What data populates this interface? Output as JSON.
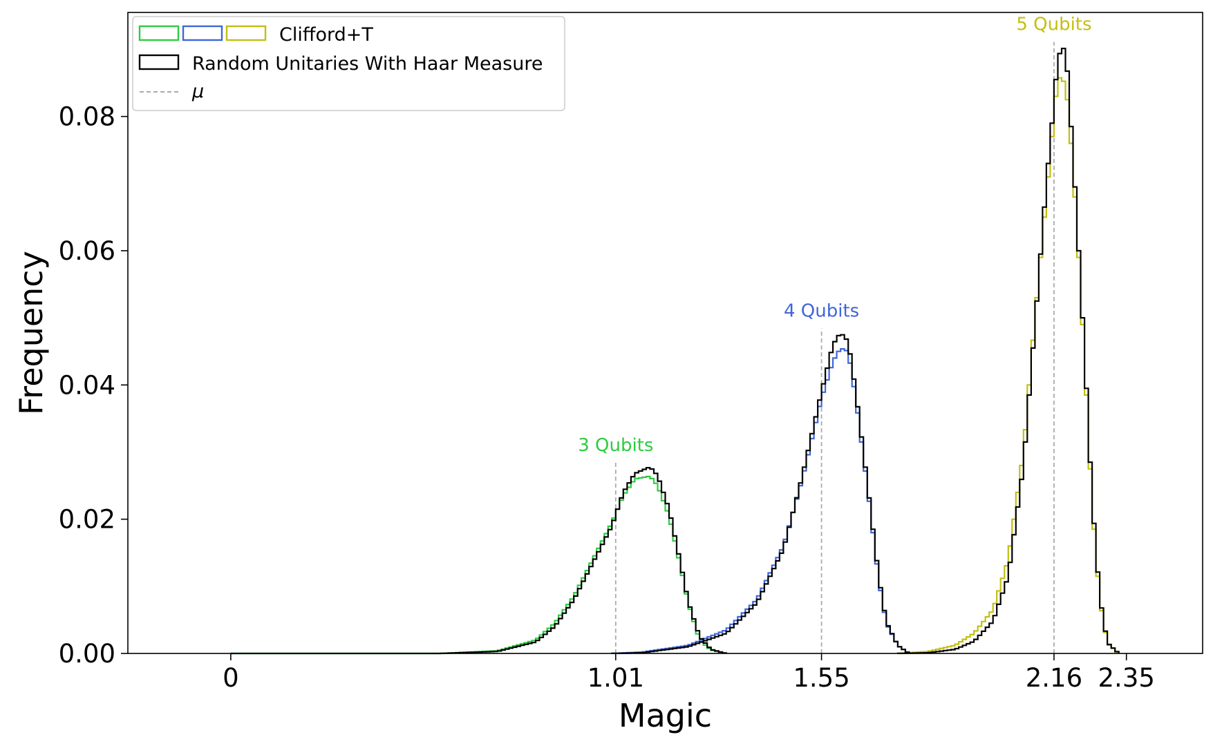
{
  "chart_data": {
    "type": "histogram",
    "xlabel": "Magic",
    "ylabel": "Frequency",
    "xlim": [
      -0.27,
      2.55
    ],
    "ylim": [
      0,
      0.0955
    ],
    "xticks": [
      {
        "value": 0,
        "label": "0"
      },
      {
        "value": 1.01,
        "label": "1.01"
      },
      {
        "value": 1.55,
        "label": "1.55"
      },
      {
        "value": 2.16,
        "label": "2.16"
      },
      {
        "value": 2.35,
        "label": "2.35"
      }
    ],
    "yticks": [
      {
        "value": 0.0,
        "label": "0.00"
      },
      {
        "value": 0.02,
        "label": "0.02"
      },
      {
        "value": 0.04,
        "label": "0.04"
      },
      {
        "value": 0.06,
        "label": "0.06"
      },
      {
        "value": 0.08,
        "label": "0.08"
      }
    ],
    "legend": {
      "position": "top-left",
      "entries": [
        {
          "label": "Clifford+T",
          "swatch_colors": [
            "#2ecc40",
            "#3f66d9",
            "#c2bf10"
          ]
        },
        {
          "label": "Random Unitaries With Haar Measure",
          "swatch_colors": [
            "#000000"
          ]
        },
        {
          "label": "μ",
          "style": "dashed",
          "swatch_colors": [
            "#aaaaaa"
          ]
        }
      ]
    },
    "groups": [
      {
        "label": "3 Qubits",
        "color": "#2ecc40",
        "mean": 1.01,
        "clifford_t": {
          "color": "#2ecc40",
          "profile": [
            [
              0.0,
              0.0
            ],
            [
              0.55,
              0.0
            ],
            [
              0.7,
              0.0004
            ],
            [
              0.8,
              0.002
            ],
            [
              0.85,
              0.0045
            ],
            [
              0.9,
              0.0085
            ],
            [
              0.95,
              0.014
            ],
            [
              1.0,
              0.0195
            ],
            [
              1.03,
              0.0235
            ],
            [
              1.06,
              0.026
            ],
            [
              1.1,
              0.0264
            ],
            [
              1.12,
              0.025
            ],
            [
              1.15,
              0.0205
            ],
            [
              1.18,
              0.013
            ],
            [
              1.2,
              0.0075
            ],
            [
              1.23,
              0.002
            ],
            [
              1.26,
              0.0005
            ],
            [
              1.3,
              0.0
            ]
          ]
        },
        "haar": {
          "color": "#000000",
          "profile": [
            [
              0.0,
              0.0
            ],
            [
              0.55,
              0.0
            ],
            [
              0.7,
              0.0003
            ],
            [
              0.8,
              0.0017
            ],
            [
              0.85,
              0.004
            ],
            [
              0.9,
              0.008
            ],
            [
              0.95,
              0.0135
            ],
            [
              1.0,
              0.019
            ],
            [
              1.03,
              0.024
            ],
            [
              1.06,
              0.0268
            ],
            [
              1.1,
              0.0278
            ],
            [
              1.12,
              0.0265
            ],
            [
              1.15,
              0.0215
            ],
            [
              1.18,
              0.0135
            ],
            [
              1.2,
              0.0078
            ],
            [
              1.23,
              0.0025
            ],
            [
              1.26,
              0.0006
            ],
            [
              1.3,
              0.0
            ]
          ]
        }
      },
      {
        "label": "4 Qubits",
        "color": "#3f66d9",
        "mean": 1.55,
        "clifford_t": {
          "color": "#3f66d9",
          "profile": [
            [
              1.0,
              0.0
            ],
            [
              1.08,
              0.0002
            ],
            [
              1.2,
              0.0012
            ],
            [
              1.3,
              0.0035
            ],
            [
              1.38,
              0.008
            ],
            [
              1.45,
              0.016
            ],
            [
              1.5,
              0.026
            ],
            [
              1.55,
              0.038
            ],
            [
              1.58,
              0.0435
            ],
            [
              1.6,
              0.0455
            ],
            [
              1.62,
              0.045
            ],
            [
              1.64,
              0.038
            ],
            [
              1.67,
              0.025
            ],
            [
              1.7,
              0.011
            ],
            [
              1.72,
              0.0045
            ],
            [
              1.75,
              0.0012
            ],
            [
              1.78,
              0.0
            ]
          ]
        },
        "haar": {
          "color": "#000000",
          "profile": [
            [
              1.0,
              0.0
            ],
            [
              1.08,
              0.0001
            ],
            [
              1.2,
              0.001
            ],
            [
              1.3,
              0.003
            ],
            [
              1.38,
              0.0075
            ],
            [
              1.45,
              0.0155
            ],
            [
              1.5,
              0.0265
            ],
            [
              1.55,
              0.039
            ],
            [
              1.58,
              0.046
            ],
            [
              1.6,
              0.0478
            ],
            [
              1.62,
              0.0465
            ],
            [
              1.64,
              0.039
            ],
            [
              1.67,
              0.0255
            ],
            [
              1.7,
              0.0115
            ],
            [
              1.72,
              0.0047
            ],
            [
              1.75,
              0.0012
            ],
            [
              1.78,
              0.0
            ]
          ]
        }
      },
      {
        "label": "5 Qubits",
        "color": "#c2bf10",
        "mean": 2.16,
        "clifford_t": {
          "color": "#c2bf10",
          "profile": [
            [
              1.75,
              0.0
            ],
            [
              1.83,
              0.0003
            ],
            [
              1.9,
              0.0012
            ],
            [
              1.95,
              0.003
            ],
            [
              2.0,
              0.0065
            ],
            [
              2.04,
              0.014
            ],
            [
              2.08,
              0.03
            ],
            [
              2.11,
              0.05
            ],
            [
              2.14,
              0.068
            ],
            [
              2.16,
              0.08
            ],
            [
              2.17,
              0.086
            ],
            [
              2.19,
              0.085
            ],
            [
              2.2,
              0.08
            ],
            [
              2.22,
              0.064
            ],
            [
              2.24,
              0.044
            ],
            [
              2.26,
              0.022
            ],
            [
              2.28,
              0.008
            ],
            [
              2.3,
              0.0015
            ],
            [
              2.33,
              0.0
            ]
          ]
        },
        "haar": {
          "color": "#000000",
          "profile": [
            [
              1.75,
              0.0
            ],
            [
              1.83,
              0.0001
            ],
            [
              1.9,
              0.0006
            ],
            [
              1.95,
              0.0018
            ],
            [
              2.0,
              0.0048
            ],
            [
              2.04,
              0.0115
            ],
            [
              2.08,
              0.028
            ],
            [
              2.11,
              0.049
            ],
            [
              2.14,
              0.07
            ],
            [
              2.16,
              0.082
            ],
            [
              2.17,
              0.089
            ],
            [
              2.19,
              0.0905
            ],
            [
              2.2,
              0.083
            ],
            [
              2.22,
              0.065
            ],
            [
              2.24,
              0.045
            ],
            [
              2.26,
              0.023
            ],
            [
              2.28,
              0.0085
            ],
            [
              2.3,
              0.0016
            ],
            [
              2.33,
              0.0
            ]
          ]
        }
      }
    ]
  }
}
